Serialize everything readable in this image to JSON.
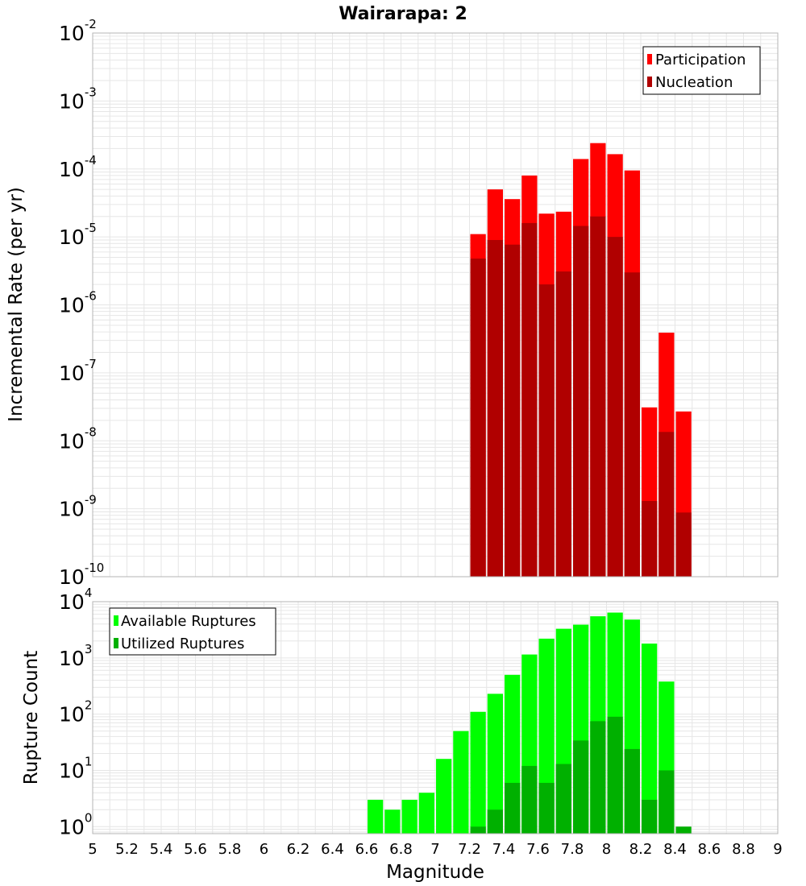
{
  "title": "Wairarapa: 2",
  "colors": {
    "participation": "#ff0000",
    "nucleation": "#b00000",
    "available": "#00ff00",
    "utilized": "#00b000",
    "grid": "#e6e6e6",
    "frame": "#b4b4b4"
  },
  "chart_data": [
    {
      "type": "bar",
      "title": "Wairarapa: 2",
      "xlabel": "",
      "ylabel": "Incremental Rate (per yr)",
      "yscale": "log",
      "xlim": [
        5,
        9
      ],
      "ylim": [
        1e-10,
        0.01
      ],
      "bin_width": 0.1,
      "y_ticks": [
        {
          "base": "10",
          "exp": "-10"
        },
        {
          "base": "10",
          "exp": "-9"
        },
        {
          "base": "10",
          "exp": "-8"
        },
        {
          "base": "10",
          "exp": "-7"
        },
        {
          "base": "10",
          "exp": "-6"
        },
        {
          "base": "10",
          "exp": "-5"
        },
        {
          "base": "10",
          "exp": "-4"
        },
        {
          "base": "10",
          "exp": "-3"
        },
        {
          "base": "10",
          "exp": "-2"
        }
      ],
      "legend": [
        "Participation",
        "Nucleation"
      ],
      "legend_position": "top-right",
      "series": [
        {
          "name": "Participation",
          "x": [
            7.25,
            7.35,
            7.45,
            7.55,
            7.65,
            7.75,
            7.85,
            7.95,
            8.05,
            8.15,
            8.25,
            8.35,
            8.45
          ],
          "values": [
            1.1e-05,
            5e-05,
            3.6e-05,
            8e-05,
            2.2e-05,
            2.35e-05,
            0.00014,
            0.00024,
            0.000165,
            9.5e-05,
            3.1e-08,
            3.9e-07,
            2.7e-08
          ]
        },
        {
          "name": "Nucleation",
          "x": [
            7.25,
            7.35,
            7.45,
            7.55,
            7.65,
            7.75,
            7.85,
            7.95,
            8.05,
            8.15,
            8.25,
            8.35,
            8.45
          ],
          "values": [
            4.8e-06,
            9e-06,
            7.7e-06,
            1.6e-05,
            2e-06,
            3.1e-06,
            1.45e-05,
            2e-05,
            1e-05,
            3e-06,
            1.3e-09,
            1.35e-08,
            8.8e-10
          ]
        }
      ]
    },
    {
      "type": "bar",
      "title": "",
      "xlabel": "Magnitude",
      "ylabel": "Rupture Count",
      "yscale": "log",
      "xlim": [
        5,
        9
      ],
      "ylim": [
        0.75,
        10000
      ],
      "bin_width": 0.1,
      "x_ticks": [
        "5",
        "5.2",
        "5.4",
        "5.6",
        "5.8",
        "6",
        "6.2",
        "6.4",
        "6.6",
        "6.8",
        "7",
        "7.2",
        "7.4",
        "7.6",
        "7.8",
        "8",
        "8.2",
        "8.4",
        "8.6",
        "8.8",
        "9"
      ],
      "y_ticks": [
        {
          "base": "10",
          "exp": "0"
        },
        {
          "base": "10",
          "exp": "1"
        },
        {
          "base": "10",
          "exp": "2"
        },
        {
          "base": "10",
          "exp": "3"
        },
        {
          "base": "10",
          "exp": "4"
        }
      ],
      "legend": [
        "Available Ruptures",
        "Utilized Ruptures"
      ],
      "legend_position": "top-left",
      "series": [
        {
          "name": "Available Ruptures",
          "x": [
            6.65,
            6.75,
            6.85,
            6.95,
            7.05,
            7.15,
            7.25,
            7.35,
            7.45,
            7.55,
            7.65,
            7.75,
            7.85,
            7.95,
            8.05,
            8.15,
            8.25,
            8.35
          ],
          "values": [
            3,
            2,
            3,
            4,
            16,
            50,
            110,
            230,
            500,
            1150,
            2200,
            3300,
            3900,
            5500,
            6400,
            4800,
            1800,
            380
          ]
        },
        {
          "name": "Utilized Ruptures",
          "x": [
            7.25,
            7.35,
            7.45,
            7.55,
            7.65,
            7.75,
            7.85,
            7.95,
            8.05,
            8.15,
            8.25,
            8.35,
            8.45
          ],
          "values": [
            1,
            2,
            6,
            12,
            6,
            13,
            34,
            75,
            90,
            24,
            3,
            10,
            1
          ]
        }
      ]
    }
  ]
}
